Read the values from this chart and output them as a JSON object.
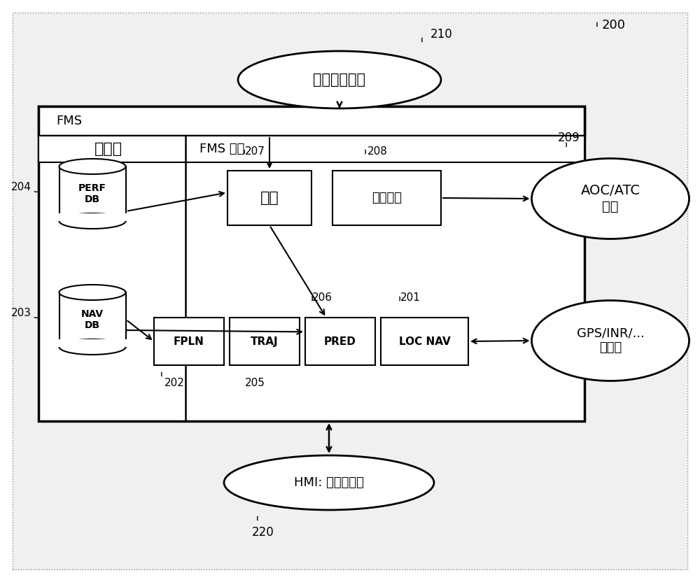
{
  "bg_color": "#e8e8e8",
  "inner_bg": "#ffffff",
  "title_ref": "200",
  "auto_flight_label": "自动飞行设备",
  "auto_flight_ref": "210",
  "fms_label": "FMS",
  "db_label": "数据库",
  "fms_func_label": "FMS 功能",
  "perf_db_label": "PERF\nDB",
  "perf_db_ref": "204",
  "nav_db_label": "NAV\nDB",
  "nav_db_ref": "203",
  "guidance_label": "导引",
  "guidance_ref": "207",
  "datalink_label": "数据链路",
  "datalink_ref": "208",
  "fpln_label": "FPLN",
  "fpln_ref": "202",
  "traj_label": "TRAJ",
  "traj_ref": "205",
  "pred_label": "PRED",
  "pred_ref": "206",
  "locnav_label": "LOC NAV",
  "locnav_ref": "201",
  "aoc_label": "AOC/ATC\n中心",
  "aoc_ref": "209",
  "gps_label": "GPS/INR/...\n传感器",
  "hmi_label": "HMI: 屏幕，键盘",
  "hmi_ref": "220"
}
